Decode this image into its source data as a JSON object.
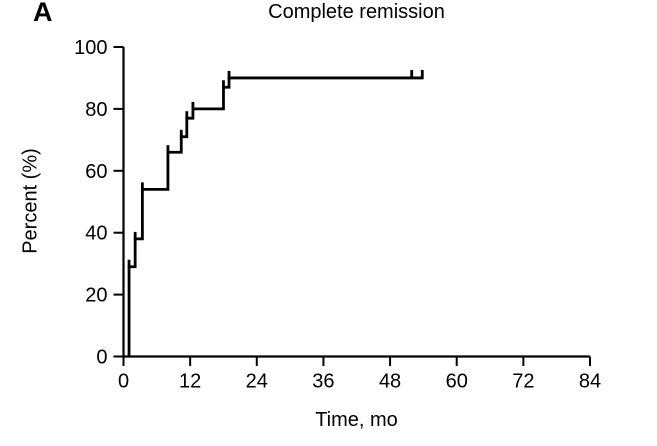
{
  "panel_label": "A",
  "colors": {
    "line": "#000000",
    "background": "#ffffff",
    "text": "#000000"
  },
  "chart_data": {
    "type": "line",
    "subtype": "kaplan-meier-step-curve",
    "title": "Complete remission",
    "xlabel": "Time, mo",
    "ylabel": "Percent (%)",
    "xlim": [
      0,
      84
    ],
    "ylim": [
      0,
      100
    ],
    "x_ticks": [
      0,
      12,
      24,
      36,
      48,
      60,
      72,
      84
    ],
    "y_ticks": [
      0,
      20,
      40,
      60,
      80,
      100
    ],
    "grid": false,
    "legend": "none",
    "series": [
      {
        "name": "Complete remission",
        "color": "#000000",
        "start": [
          1,
          0
        ],
        "step_points": [
          [
            1,
            29
          ],
          [
            2.1,
            38
          ],
          [
            3.4,
            54
          ],
          [
            8,
            66
          ],
          [
            10.4,
            71
          ],
          [
            11.4,
            77
          ],
          [
            12.5,
            80
          ],
          [
            18,
            87
          ],
          [
            19,
            90
          ]
        ],
        "curve_end_time": 54,
        "plateau_percent": 90,
        "censor_marks": [
          [
            51.9,
            90
          ],
          [
            53.8,
            90
          ]
        ]
      }
    ]
  }
}
